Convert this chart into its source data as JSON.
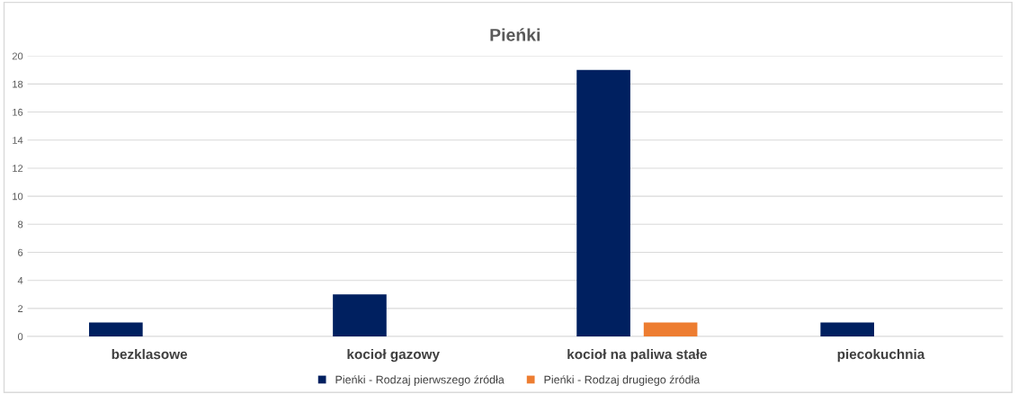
{
  "chart_data": {
    "type": "bar",
    "title": "Pieńki",
    "categories": [
      "bezklasowe",
      "kocioł gazowy",
      "kocioł na paliwa stałe",
      "piecokuchnia"
    ],
    "series": [
      {
        "name": "Pieńki - Rodzaj pierwszego źródła",
        "color": "#002060",
        "values": [
          1,
          3,
          19,
          1
        ]
      },
      {
        "name": "Pieńki - Rodzaj drugiego źródła",
        "color": "#ed7d31",
        "values": [
          null,
          null,
          1,
          null
        ]
      }
    ],
    "ylim": [
      0,
      20
    ],
    "yticks": [
      0,
      2,
      4,
      6,
      8,
      10,
      12,
      14,
      16,
      18,
      20
    ],
    "grid": "y",
    "legend": "bottom"
  }
}
